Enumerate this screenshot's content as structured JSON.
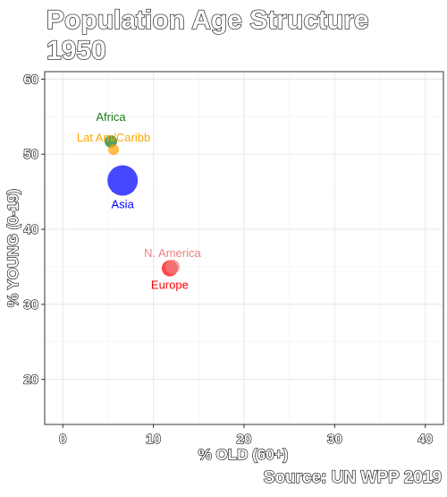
{
  "chart_data": {
    "type": "scatter",
    "title": "Population Age Structure",
    "subtitle": "1950",
    "xlabel": "% OLD (60+)",
    "ylabel": "% YOUNG (0-19)",
    "caption": "Source: UN WPP 2019",
    "xlim": [
      -2,
      42
    ],
    "ylim": [
      14,
      61
    ],
    "x_ticks": [
      0,
      10,
      20,
      30,
      40
    ],
    "y_ticks": [
      20,
      30,
      40,
      50,
      60
    ],
    "grid": true,
    "points": [
      {
        "label": "Africa",
        "x": 5.3,
        "y": 51.7,
        "size": 7,
        "color": "#1a7a1a",
        "label_color": "#1a7a1a",
        "label_pos": "above-far"
      },
      {
        "label": "Lat Am/Caribb",
        "x": 5.6,
        "y": 50.6,
        "size": 6,
        "color": "#ffa500",
        "label_color": "#ffa500",
        "label_pos": "above"
      },
      {
        "label": "Asia",
        "x": 6.6,
        "y": 46.5,
        "size": 17,
        "color": "#0000ff",
        "label_color": "#0000ff",
        "label_pos": "below"
      },
      {
        "label": "N. America",
        "x": 12.1,
        "y": 35.0,
        "size": 8,
        "color": "#f08080",
        "label_color": "#f08080",
        "label_pos": "above"
      },
      {
        "label": "Europe",
        "x": 11.8,
        "y": 34.8,
        "size": 9,
        "color": "#ff0000",
        "label_color": "#ff0000",
        "label_pos": "below"
      }
    ]
  }
}
